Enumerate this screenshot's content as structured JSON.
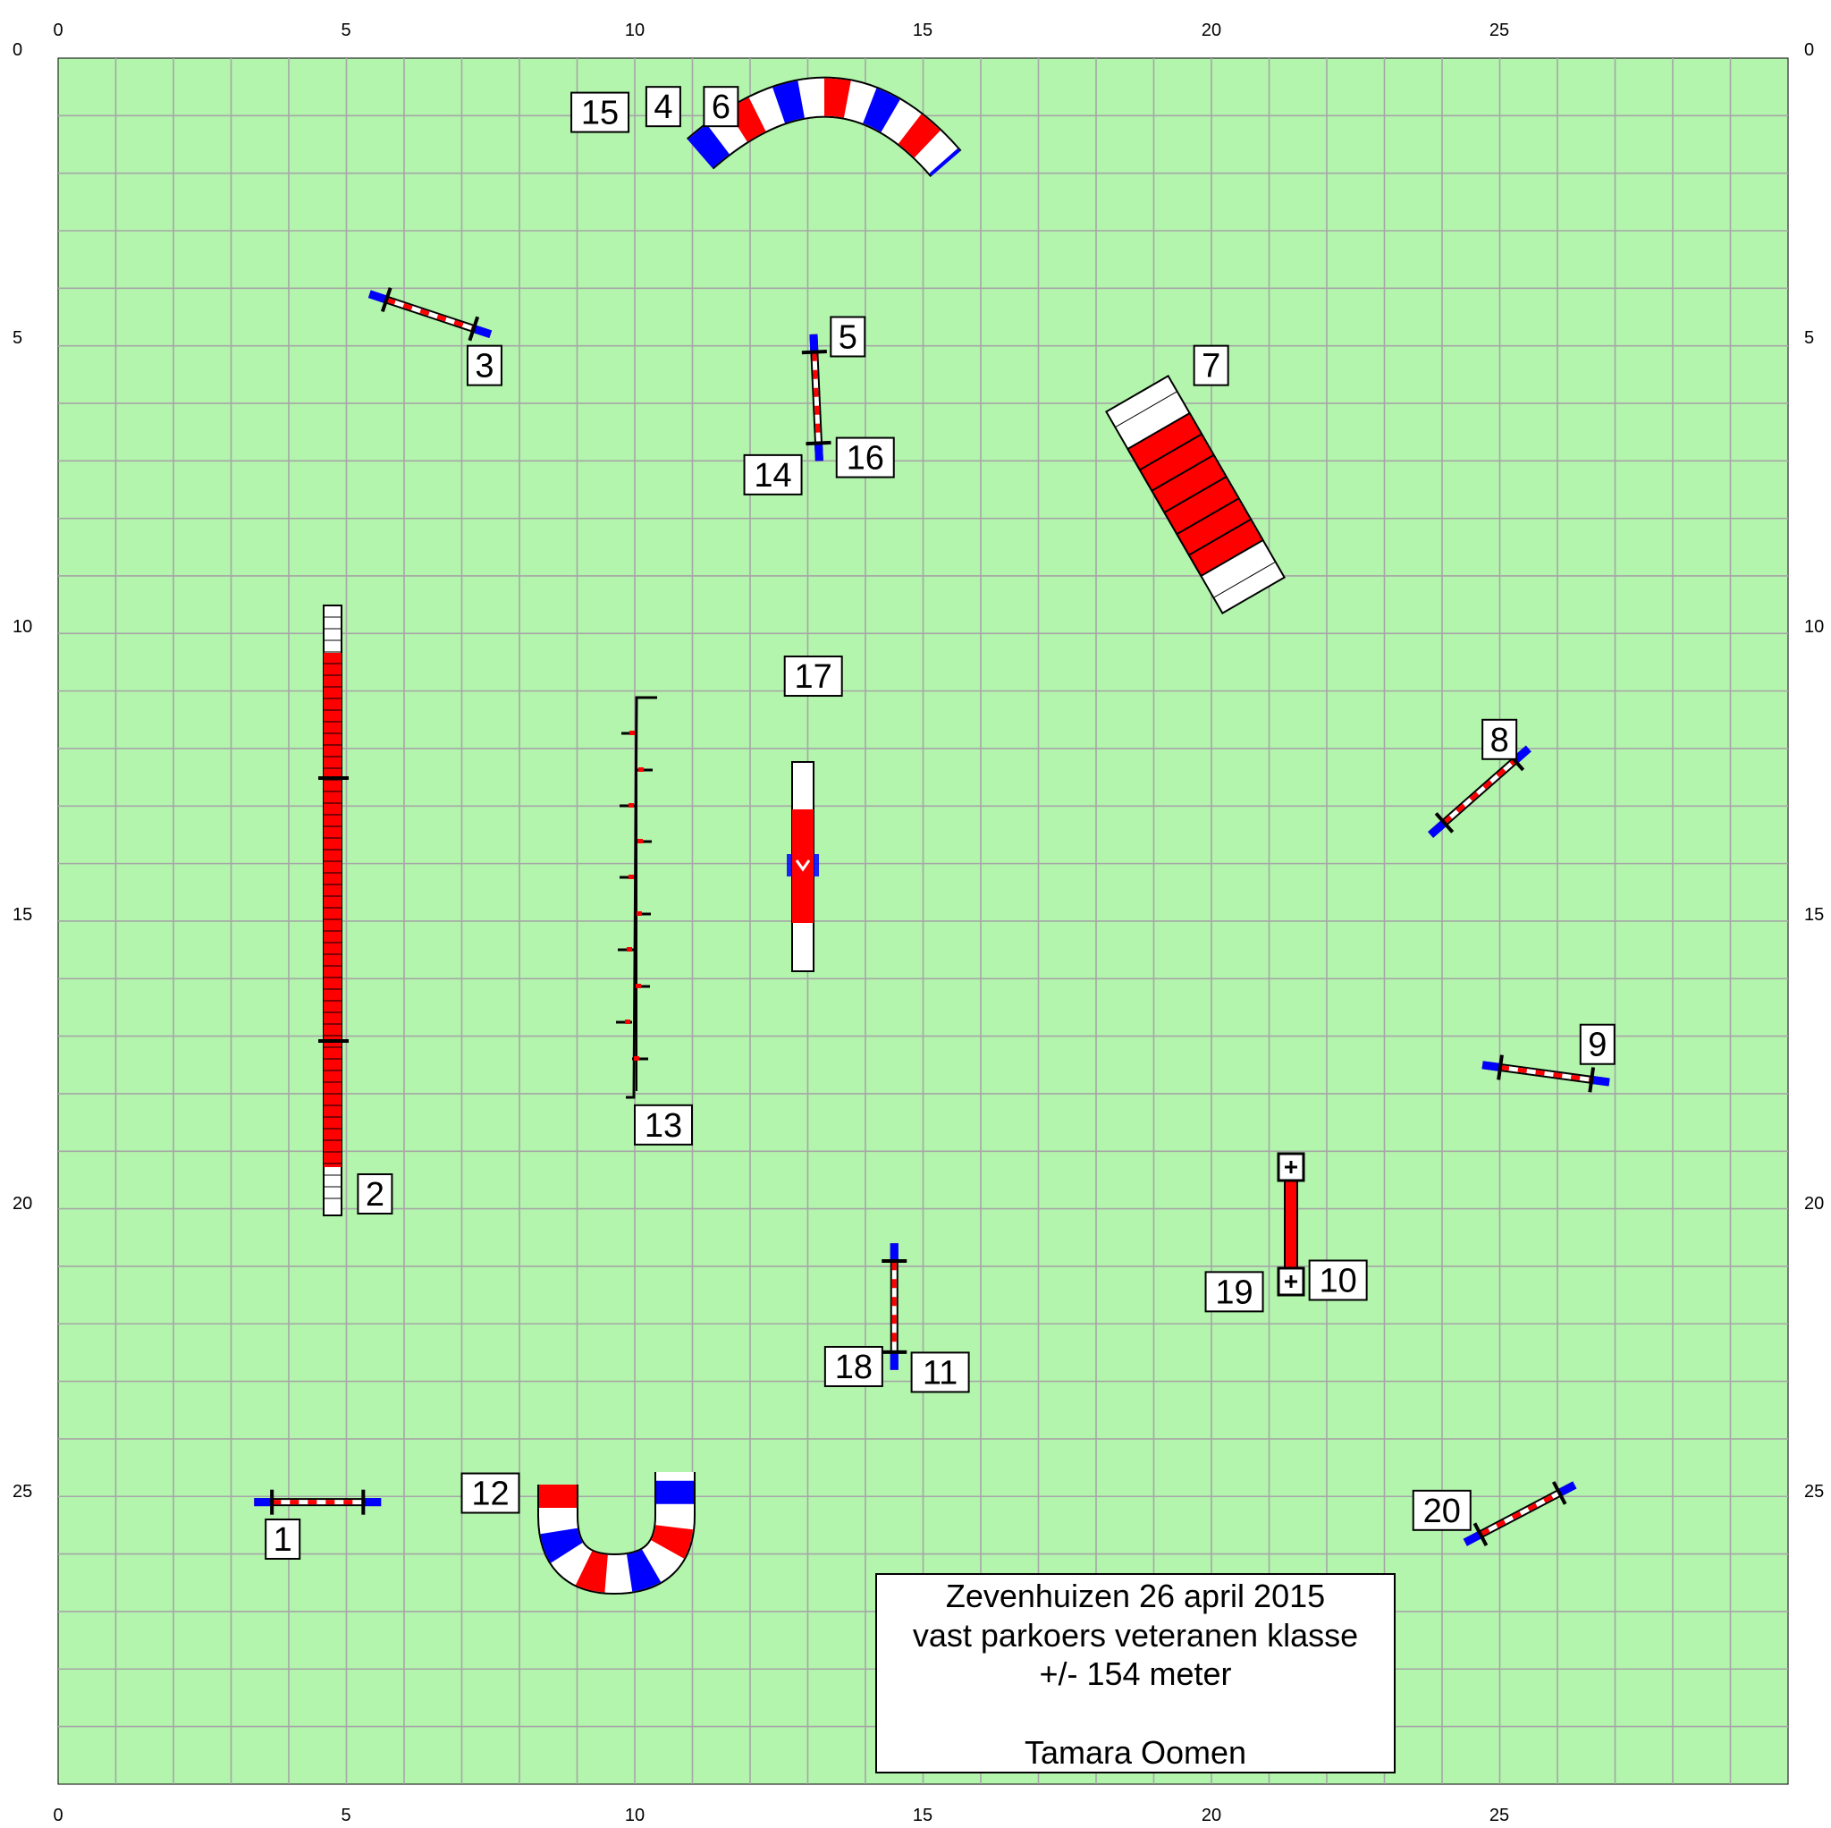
{
  "field": {
    "color": "#b3f5ad",
    "grid_color": "#a6a6a6",
    "width_m": 30,
    "height_m": 30,
    "grid_step_m": 1
  },
  "axis_ticks": {
    "x": [
      "0",
      "5",
      "10",
      "15",
      "20",
      "25"
    ],
    "y": [
      "0",
      "5",
      "10",
      "15",
      "20",
      "25"
    ]
  },
  "info": {
    "line1": "Zevenhuizen 26 april 2015",
    "line2": "vast parkoers veteranen klasse",
    "line3": "+/- 154 meter",
    "author": "Tamara Oomen"
  },
  "colors": {
    "red": "#ff0000",
    "blue": "#0000ff",
    "white": "#ffffff",
    "black": "#000000"
  },
  "obstacles": [
    {
      "id": "jump-1",
      "icon": "hurdle-icon",
      "x1": 3.4,
      "y1": 25.1,
      "x2": 5.6,
      "y2": 25.1
    },
    {
      "id": "jump-3",
      "icon": "hurdle-icon",
      "x1": 5.4,
      "y1": 4.1,
      "x2": 7.5,
      "y2": 4.8
    },
    {
      "id": "jump-5",
      "icon": "hurdle-icon",
      "x1": 13.1,
      "y1": 4.8,
      "x2": 13.2,
      "y2": 7.0
    },
    {
      "id": "jump-8",
      "icon": "hurdle-icon",
      "x1": 23.8,
      "y1": 13.5,
      "x2": 25.5,
      "y2": 12.0
    },
    {
      "id": "jump-9",
      "icon": "hurdle-icon",
      "x1": 24.7,
      "y1": 17.5,
      "x2": 26.9,
      "y2": 17.8
    },
    {
      "id": "jump-11",
      "icon": "hurdle-icon",
      "x1": 14.5,
      "y1": 20.6,
      "x2": 14.5,
      "y2": 22.8
    },
    {
      "id": "jump-20",
      "icon": "hurdle-icon",
      "x1": 24.4,
      "y1": 25.8,
      "x2": 26.3,
      "y2": 24.8
    }
  ],
  "labels": [
    {
      "text": "1",
      "x": 3.6,
      "y": 25.4
    },
    {
      "text": "2",
      "x": 5.2,
      "y": 19.4
    },
    {
      "text": "3",
      "x": 7.1,
      "y": 5.0
    },
    {
      "text": "4",
      "x": 10.2,
      "y": 0.5
    },
    {
      "text": "5",
      "x": 13.4,
      "y": 4.5
    },
    {
      "text": "6",
      "x": 11.2,
      "y": 0.5
    },
    {
      "text": "7",
      "x": 19.7,
      "y": 5.0
    },
    {
      "text": "8",
      "x": 24.7,
      "y": 11.5
    },
    {
      "text": "9",
      "x": 26.4,
      "y": 16.8
    },
    {
      "text": "10",
      "x": 21.7,
      "y": 20.9
    },
    {
      "text": "11",
      "x": 14.8,
      "y": 22.5
    },
    {
      "text": "12",
      "x": 7.0,
      "y": 24.6
    },
    {
      "text": "13",
      "x": 10.0,
      "y": 18.2
    },
    {
      "text": "14",
      "x": 11.9,
      "y": 6.9
    },
    {
      "text": "15",
      "x": 8.9,
      "y": 0.6
    },
    {
      "text": "16",
      "x": 13.5,
      "y": 6.6
    },
    {
      "text": "17",
      "x": 12.6,
      "y": 10.4
    },
    {
      "text": "18",
      "x": 13.3,
      "y": 22.4
    },
    {
      "text": "19",
      "x": 19.9,
      "y": 21.1
    },
    {
      "text": "20",
      "x": 23.5,
      "y": 24.9
    }
  ]
}
